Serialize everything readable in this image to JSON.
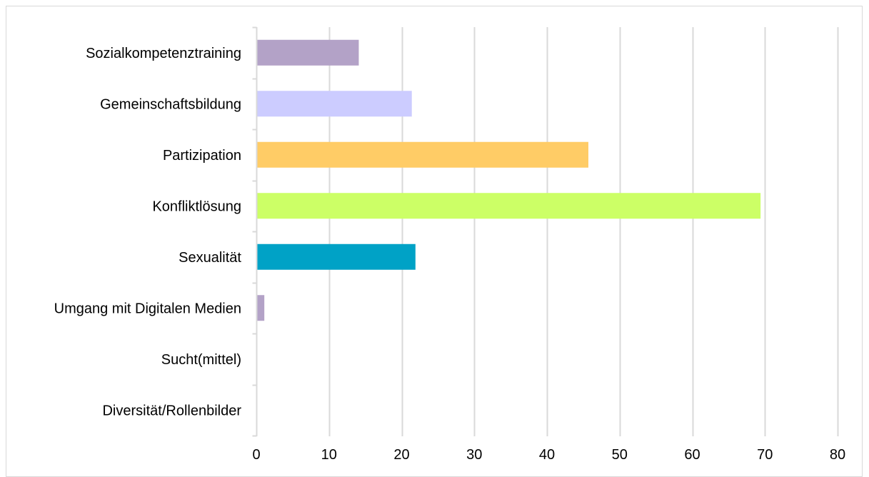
{
  "chart_data": {
    "type": "bar",
    "orientation": "horizontal",
    "title": "",
    "xlabel": "",
    "ylabel": "",
    "categories": [
      "Sozialkompetenztraining",
      "Gemeinschaftsbildung",
      "Partizipation",
      "Konfliktlösung",
      "Sexualität",
      "Umgang mit Digitalen Medien",
      "Sucht(mittel)",
      "Diversität/Rollenbilder"
    ],
    "values": [
      14,
      21.3,
      45.6,
      69.3,
      21.8,
      1,
      0,
      0
    ],
    "colors": [
      "#b3a2c7",
      "#ccccff",
      "#ffcc66",
      "#ccff66",
      "#00a2c6",
      "#b3a2c7",
      "#b3a2c7",
      "#b3a2c7"
    ],
    "xlim": [
      0,
      80
    ],
    "xticks": [
      0,
      10,
      20,
      30,
      40,
      50,
      60,
      70,
      80
    ],
    "grid": true,
    "gridColor": "#d9d9d9",
    "legend": "none"
  }
}
